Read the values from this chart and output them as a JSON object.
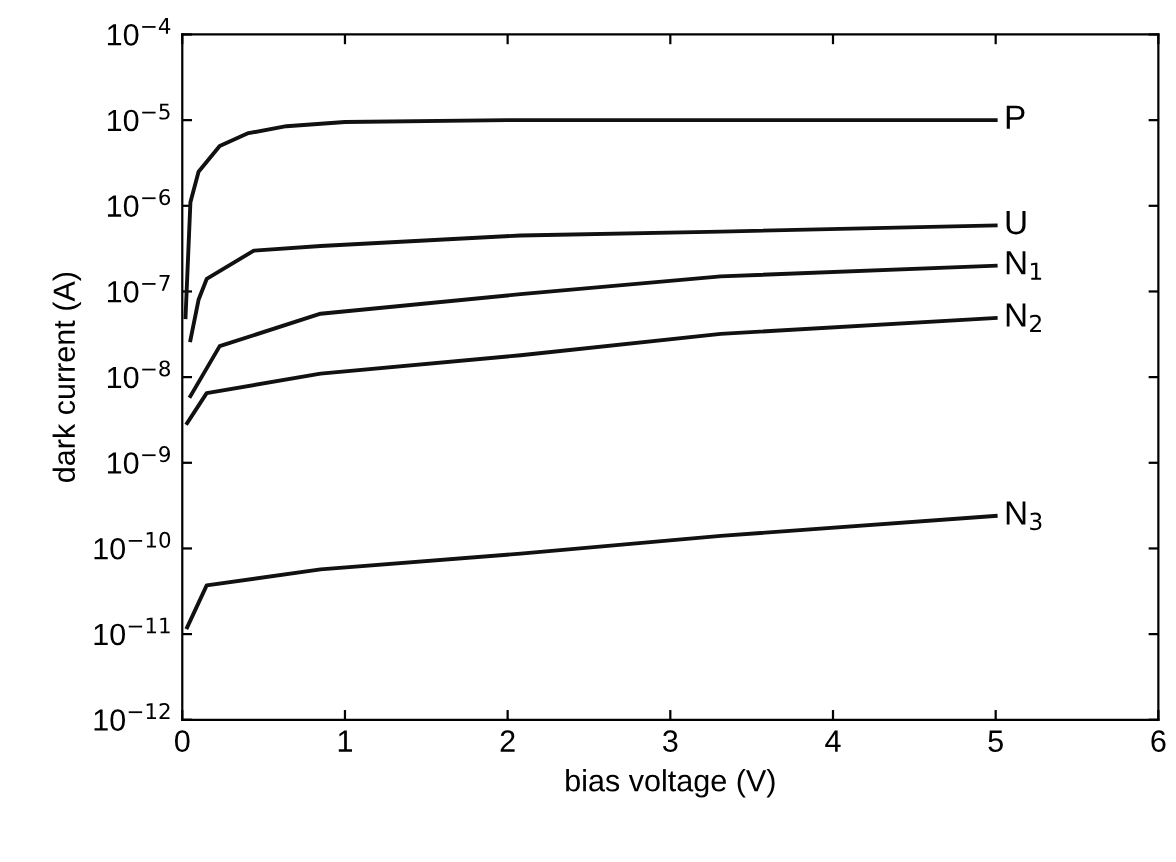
{
  "chart_data": {
    "type": "line",
    "xlabel": "bias voltage (V)",
    "ylabel": "dark current (A)",
    "log": "y",
    "grid": false,
    "legend": false,
    "marker": "none",
    "line_style": "solid",
    "xlim": [
      0,
      6
    ],
    "xticks": [
      0,
      1,
      2,
      3,
      4,
      5,
      6
    ],
    "ylim": [
      1e-12,
      0.0001
    ],
    "yticks": [
      {
        "value": 1e-12,
        "label": "10$^{−12}$"
      },
      {
        "value": 1e-11,
        "label": "10$^{−11}$"
      },
      {
        "value": 1e-10,
        "label": "10$^{−10}$"
      },
      {
        "value": 1e-09,
        "label": "10$^{−9}$"
      },
      {
        "value": 1e-08,
        "label": "10$^{−8}$"
      },
      {
        "value": 1e-07,
        "label": "10$^{−7}$"
      },
      {
        "value": 1e-06,
        "label": "10$^{−6}$"
      },
      {
        "value": 1e-05,
        "label": "10$^{−5}$"
      },
      {
        "value": 0.0001,
        "label": "10$^{−4}$"
      }
    ],
    "series": [
      {
        "name": "P",
        "color": "#111111",
        "x": [
          0.02,
          0.05,
          0.1,
          0.23,
          0.4,
          0.64,
          1.0,
          2.0,
          3.0,
          5.0
        ],
        "values": [
          5e-08,
          1.1e-06,
          2.5e-06,
          5e-06,
          7e-06,
          8.5e-06,
          9.5e-06,
          1e-05,
          1e-05,
          1e-05
        ]
      },
      {
        "name": "U",
        "color": "#111111",
        "x": [
          0.05,
          0.1,
          0.15,
          0.44,
          0.85,
          2.08,
          3.31,
          5.0
        ],
        "values": [
          2.7e-08,
          8e-08,
          1.4e-07,
          3e-07,
          3.4e-07,
          4.5e-07,
          5e-07,
          5.9e-07
        ]
      },
      {
        "name": "N$_{1}$",
        "color": "#111111",
        "x": [
          0.05,
          0.23,
          0.85,
          2.08,
          3.31,
          5.0
        ],
        "values": [
          6e-09,
          2.3e-08,
          5.5e-08,
          9.3e-08,
          1.5e-07,
          2e-07
        ]
      },
      {
        "name": "N$_{2}$",
        "color": "#111111",
        "x": [
          0.03,
          0.15,
          0.85,
          2.08,
          3.31,
          5.0
        ],
        "values": [
          2.9e-09,
          6.5e-09,
          1.1e-08,
          1.8e-08,
          3.2e-08,
          4.9e-08
        ]
      },
      {
        "name": "N$_{3}$",
        "color": "#111111",
        "x": [
          0.03,
          0.15,
          0.85,
          2.08,
          3.31,
          5.0
        ],
        "values": [
          1.2e-11,
          3.7e-11,
          5.7e-11,
          8.7e-11,
          1.4e-10,
          2.4e-10
        ]
      }
    ]
  }
}
